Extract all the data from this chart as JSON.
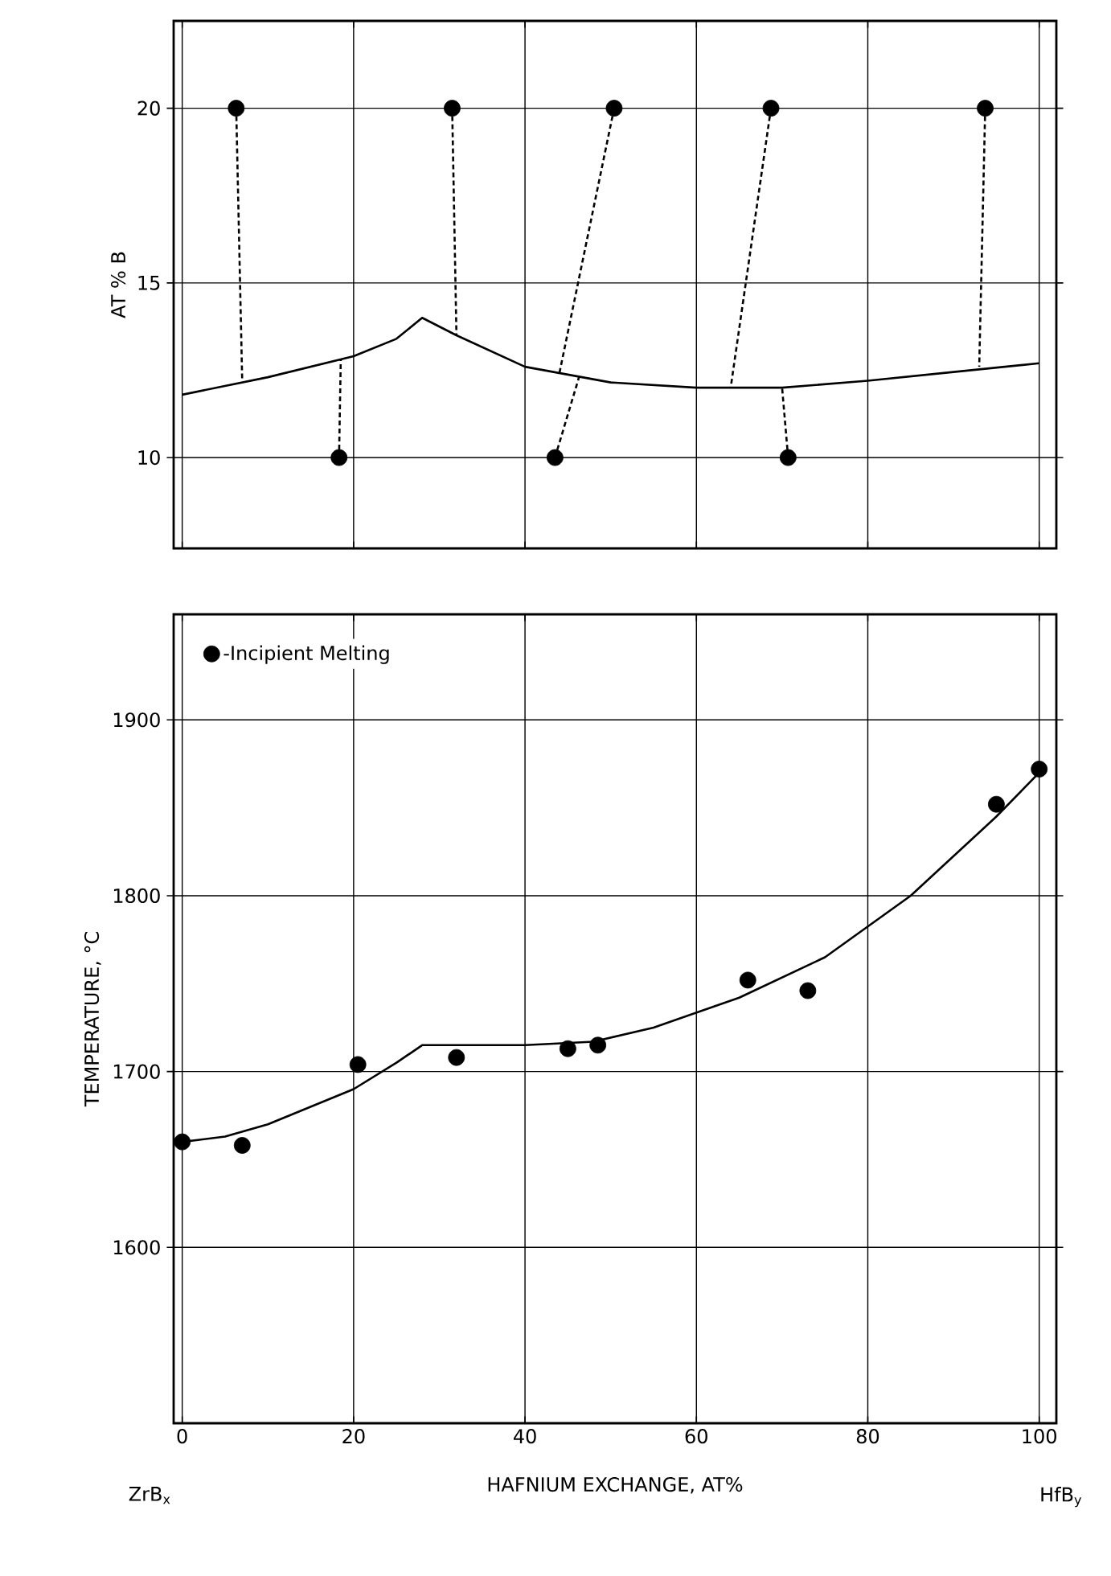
{
  "chart_data": [
    {
      "type": "scatter",
      "ylabel": "AT % B",
      "xlim": [
        -1,
        102
      ],
      "ylim": [
        7.4,
        22.5
      ],
      "xticks": [
        0,
        20,
        40,
        60,
        80,
        100
      ],
      "yticks": [
        10,
        15,
        20
      ],
      "tick_labels": "y",
      "grid": true,
      "legend": false,
      "series": [
        {
          "marker": "circle",
          "color": "#000000",
          "x": [
            6.3,
            31.5,
            50.4,
            68.7,
            93.7,
            18.3,
            43.5,
            70.7
          ],
          "values": [
            20,
            20,
            20,
            20,
            20,
            10,
            10,
            10
          ]
        },
        {
          "type": "line",
          "marker": "none",
          "line_style": "solid",
          "color": "#000000",
          "x": [
            0,
            10,
            20,
            25,
            28,
            32,
            40,
            50,
            60,
            70,
            80,
            90,
            100
          ],
          "values": [
            11.8,
            12.3,
            12.9,
            13.4,
            14,
            13.5,
            12.6,
            12.15,
            12.0,
            12.0,
            12.2,
            12.45,
            12.7
          ]
        },
        {
          "type": "line",
          "marker": "none",
          "line_style": "dashed",
          "color": "#000000",
          "x": [
            6.3,
            7
          ],
          "values": [
            20,
            12.2
          ]
        },
        {
          "type": "line",
          "marker": "none",
          "line_style": "dashed",
          "color": "#000000",
          "x": [
            31.5,
            32
          ],
          "values": [
            20,
            13.5
          ]
        },
        {
          "type": "line",
          "marker": "none",
          "line_style": "dashed",
          "color": "#000000",
          "x": [
            50.4,
            44
          ],
          "values": [
            20,
            12.4
          ]
        },
        {
          "type": "line",
          "marker": "none",
          "line_style": "dashed",
          "color": "#000000",
          "x": [
            68.7,
            64
          ],
          "values": [
            20,
            12.0
          ]
        },
        {
          "type": "line",
          "marker": "none",
          "line_style": "dashed",
          "color": "#000000",
          "x": [
            93.7,
            93
          ],
          "values": [
            20,
            12.6
          ]
        },
        {
          "type": "line",
          "marker": "none",
          "line_style": "dashed",
          "color": "#000000",
          "x": [
            18.3,
            18.5
          ],
          "values": [
            10,
            12.8
          ]
        },
        {
          "type": "line",
          "marker": "none",
          "line_style": "dashed",
          "color": "#000000",
          "x": [
            43.5,
            46.3
          ],
          "values": [
            10,
            12.3
          ]
        },
        {
          "type": "line",
          "marker": "none",
          "line_style": "dashed",
          "color": "#000000",
          "x": [
            70.7,
            70
          ],
          "values": [
            10,
            12.0
          ]
        }
      ]
    },
    {
      "type": "scatter",
      "xlabel": "HAFNIUM EXCHANGE, AT%",
      "ylabel": "TEMPERATURE, °C",
      "xlim": [
        -1,
        102
      ],
      "ylim": [
        1500,
        1960
      ],
      "xticks": [
        0,
        20,
        40,
        60,
        80,
        100
      ],
      "yticks": [
        1600,
        1700,
        1800,
        1900
      ],
      "grid": true,
      "legend": "top left",
      "annotations": [
        "ZrB$_{x}$",
        "HfB$_{y}$"
      ],
      "series": [
        {
          "name": "-Incipient Melting",
          "marker": "circle",
          "color": "#000000",
          "x": [
            0,
            7,
            20.5,
            32,
            45,
            48.5,
            66,
            73,
            95,
            100
          ],
          "values": [
            1660,
            1658,
            1704,
            1708,
            1713,
            1715,
            1752,
            1746,
            1852,
            1872
          ]
        },
        {
          "type": "line",
          "marker": "none",
          "line_style": "solid",
          "color": "#000000",
          "x": [
            0,
            5,
            10,
            15,
            20,
            25,
            28,
            40,
            48,
            55,
            65,
            75,
            85,
            95,
            100
          ],
          "values": [
            1660,
            1663,
            1670,
            1680,
            1690,
            1705,
            1715,
            1715,
            1717,
            1725,
            1742,
            1765,
            1800,
            1845,
            1870
          ]
        }
      ]
    }
  ]
}
